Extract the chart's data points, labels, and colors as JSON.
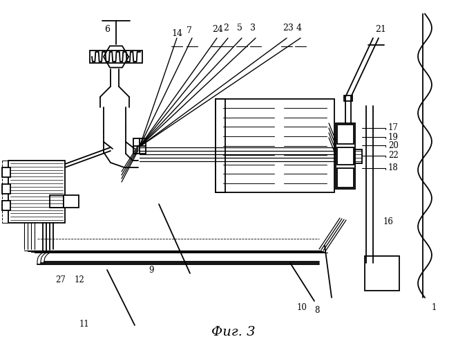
{
  "bg": "#ffffff",
  "lc": "#000000",
  "caption": "Фиг. 3"
}
